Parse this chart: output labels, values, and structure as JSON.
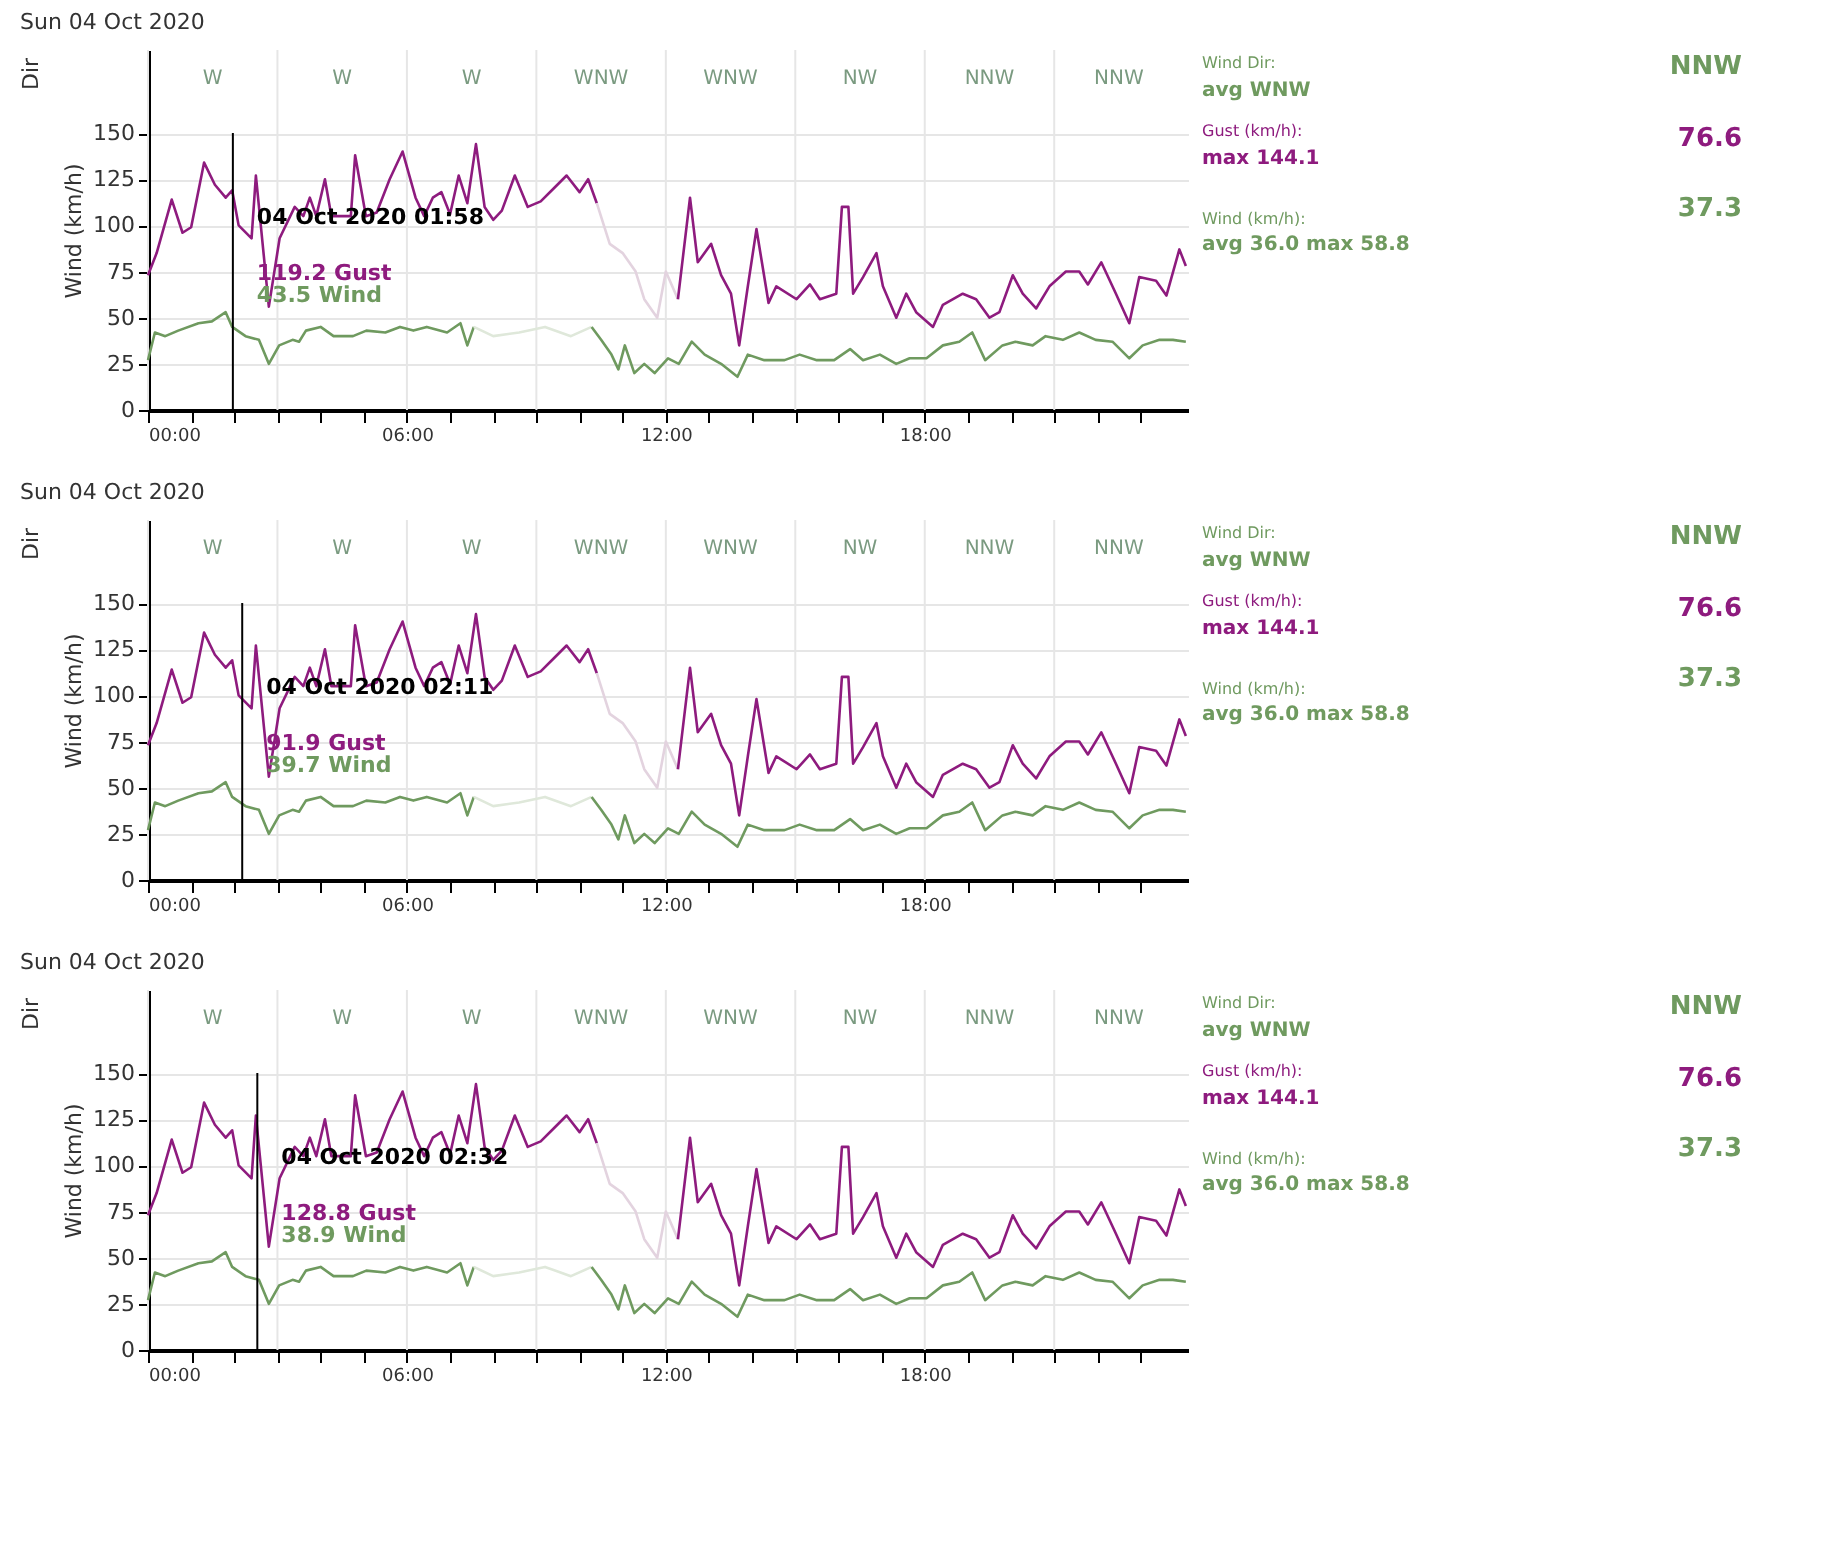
{
  "chart_data": [
    {
      "type": "line",
      "title": "Sun 04 Oct 2020",
      "ylabel": "Wind (km/h)",
      "xlim": [
        0,
        24.1
      ],
      "ylim": [
        0,
        195
      ],
      "xticks": [
        {
          "value": 0,
          "label": "00:00"
        },
        {
          "value": 1,
          "label": null
        },
        {
          "value": 2,
          "label": null
        },
        {
          "value": 3,
          "label": null
        },
        {
          "value": 4,
          "label": null
        },
        {
          "value": 5,
          "label": null
        },
        {
          "value": 6,
          "label": "06:00"
        },
        {
          "value": 7,
          "label": null
        },
        {
          "value": 8,
          "label": null
        },
        {
          "value": 9,
          "label": null
        },
        {
          "value": 10,
          "label": null
        },
        {
          "value": 11,
          "label": null
        },
        {
          "value": 12,
          "label": "12:00"
        },
        {
          "value": 13,
          "label": null
        },
        {
          "value": 14,
          "label": null
        },
        {
          "value": 15,
          "label": null
        },
        {
          "value": 16,
          "label": null
        },
        {
          "value": 17,
          "label": null
        },
        {
          "value": 18,
          "label": "18:00"
        },
        {
          "value": 19,
          "label": null
        },
        {
          "value": 20,
          "label": null
        },
        {
          "value": 21,
          "label": null
        },
        {
          "value": 22,
          "label": null
        },
        {
          "value": 23,
          "label": null
        }
      ],
      "yticks": [
        0,
        25,
        50,
        75,
        100,
        125,
        150
      ],
      "grid": true,
      "legend": false,
      "marker": "none",
      "line_style": "solid",
      "series": [
        {
          "color": "#8e1b7e",
          "x": [
            0,
            0.2,
            0.55,
            0.8,
            1.0,
            1.3,
            1.55,
            1.8,
            1.95,
            2.1,
            2.4,
            2.5,
            2.8,
            3.05,
            3.4,
            3.6,
            3.75,
            3.9,
            4.1,
            4.25,
            4.7,
            4.8,
            5.05,
            5.3,
            5.6,
            5.9,
            6.2,
            6.4,
            6.6,
            6.8,
            7.0,
            7.2,
            7.4,
            7.6,
            7.8,
            8.0,
            8.2,
            8.5,
            8.8,
            9.1,
            9.4,
            9.7,
            10.0,
            10.2,
            10.4
          ],
          "values": [
            73,
            85,
            114,
            96,
            99,
            134,
            122,
            115,
            119,
            100,
            93,
            127,
            56,
            93,
            110,
            105,
            115,
            105,
            125,
            105,
            105,
            138,
            105,
            107,
            125,
            140,
            115,
            105,
            115,
            118,
            106,
            127,
            112,
            144,
            110,
            103,
            108,
            127,
            110,
            113,
            120,
            127,
            118,
            125,
            112
          ]
        },
        {
          "color": "#e3d3df",
          "x": [
            10.4,
            10.7,
            11.0,
            11.3,
            11.5,
            11.8,
            12.0,
            12.28
          ],
          "values": [
            112,
            90,
            85,
            75,
            60,
            50,
            75,
            60
          ]
        },
        {
          "color": "#8e1b7e",
          "x": [
            12.28,
            12.56,
            12.74,
            13.05,
            13.28,
            13.51,
            13.7,
            13.9,
            14.1,
            14.38,
            14.56,
            15.03,
            15.34,
            15.57,
            15.95,
            16.08,
            16.23,
            16.34,
            16.57,
            16.88,
            17.03,
            17.34,
            17.57,
            17.8,
            18.19,
            18.42,
            18.88,
            19.19,
            19.5,
            19.73,
            20.04,
            20.27,
            20.58,
            20.89,
            21.27,
            21.58,
            21.78,
            22.09,
            22.43,
            22.74,
            22.97,
            23.36,
            23.6,
            23.9,
            24.05
          ],
          "values": [
            60,
            115,
            80,
            90,
            73,
            63,
            35,
            67,
            98,
            58,
            67,
            60,
            68,
            60,
            63,
            110,
            110,
            63,
            72,
            85,
            67,
            50,
            63,
            53,
            45,
            57,
            63,
            60,
            50,
            53,
            73,
            63,
            55,
            67,
            75,
            75,
            68,
            80,
            63,
            47,
            72,
            70,
            62,
            87,
            78
          ]
        },
        {
          "color": "#6f9a5f",
          "x": [
            0,
            0.16,
            0.4,
            0.7,
            1.17,
            1.48,
            1.8,
            1.95,
            2.26,
            2.57,
            2.8,
            3.04,
            3.35,
            3.5,
            3.66,
            4.0,
            4.3,
            4.75,
            5.06,
            5.5,
            5.84,
            6.15,
            6.46,
            6.93,
            7.24,
            7.4,
            7.55
          ],
          "values": [
            27,
            42,
            40,
            43,
            47,
            48,
            53,
            45,
            40,
            38,
            25,
            35,
            38,
            37,
            43,
            45,
            40,
            40,
            43,
            42,
            45,
            43,
            45,
            42,
            47,
            35,
            45
          ]
        },
        {
          "color": "#dfe8da",
          "x": [
            7.55,
            8.0,
            8.6,
            9.2,
            9.8,
            10.28
          ],
          "values": [
            45,
            40,
            42,
            45,
            40,
            45
          ]
        },
        {
          "color": "#6f9a5f",
          "x": [
            10.28,
            10.5,
            10.74,
            10.9,
            11.05,
            11.27,
            11.5,
            11.74,
            12.05,
            12.3,
            12.6,
            12.9,
            13.28,
            13.66,
            13.9,
            14.28,
            14.75,
            15.1,
            15.5,
            15.9,
            16.27,
            16.57,
            16.96,
            17.34,
            17.65,
            18.04,
            18.42,
            18.8,
            19.1,
            19.4,
            19.8,
            20.1,
            20.5,
            20.8,
            21.2,
            21.58,
            21.96,
            22.35,
            22.74,
            23.05,
            23.44,
            23.75,
            24.05
          ],
          "values": [
            45,
            38,
            30,
            22,
            35,
            20,
            25,
            20,
            28,
            25,
            37,
            30,
            25,
            18,
            30,
            27,
            27,
            30,
            27,
            27,
            33,
            27,
            30,
            25,
            28,
            28,
            35,
            37,
            42,
            27,
            35,
            37,
            35,
            40,
            38,
            42,
            38,
            37,
            28,
            35,
            38,
            38,
            37
          ]
        }
      ],
      "ref_lines": [
        {
          "axis": "x",
          "value": 1.9667,
          "color": "#000000"
        }
      ],
      "annotations": [
        "W",
        "W",
        "W",
        "WNW",
        "WNW",
        "NW",
        "NNW",
        "NNW",
        "Dir",
        "04 Oct 2020 01:58",
        "119.2 Gust",
        "43.5 Wind",
        "Wind Dir:",
        "avg WNW",
        "Gust (km/h):",
        "max 144.1",
        "Wind (km/h):",
        "avg 36.0   max 58.8",
        "NNW",
        "76.6",
        "37.3"
      ]
    },
    {
      "type": "line",
      "title": "Sun 04 Oct 2020",
      "ylabel": "Wind (km/h)",
      "xlim": [
        0,
        24.1
      ],
      "ylim": [
        0,
        195
      ],
      "xticks": [
        {
          "value": 0,
          "label": "00:00"
        },
        {
          "value": 1,
          "label": null
        },
        {
          "value": 2,
          "label": null
        },
        {
          "value": 3,
          "label": null
        },
        {
          "value": 4,
          "label": null
        },
        {
          "value": 5,
          "label": null
        },
        {
          "value": 6,
          "label": "06:00"
        },
        {
          "value": 7,
          "label": null
        },
        {
          "value": 8,
          "label": null
        },
        {
          "value": 9,
          "label": null
        },
        {
          "value": 10,
          "label": null
        },
        {
          "value": 11,
          "label": null
        },
        {
          "value": 12,
          "label": "12:00"
        },
        {
          "value": 13,
          "label": null
        },
        {
          "value": 14,
          "label": null
        },
        {
          "value": 15,
          "label": null
        },
        {
          "value": 16,
          "label": null
        },
        {
          "value": 17,
          "label": null
        },
        {
          "value": 18,
          "label": "18:00"
        },
        {
          "value": 19,
          "label": null
        },
        {
          "value": 20,
          "label": null
        },
        {
          "value": 21,
          "label": null
        },
        {
          "value": 22,
          "label": null
        },
        {
          "value": 23,
          "label": null
        }
      ],
      "yticks": [
        0,
        25,
        50,
        75,
        100,
        125,
        150
      ],
      "grid": true,
      "legend": false,
      "marker": "none",
      "line_style": "solid",
      "series": [
        {
          "color": "#8e1b7e",
          "x": [
            0,
            0.2,
            0.55,
            0.8,
            1.0,
            1.3,
            1.55,
            1.8,
            1.95,
            2.1,
            2.4,
            2.5,
            2.8,
            3.05,
            3.4,
            3.6,
            3.75,
            3.9,
            4.1,
            4.25,
            4.7,
            4.8,
            5.05,
            5.3,
            5.6,
            5.9,
            6.2,
            6.4,
            6.6,
            6.8,
            7.0,
            7.2,
            7.4,
            7.6,
            7.8,
            8.0,
            8.2,
            8.5,
            8.8,
            9.1,
            9.4,
            9.7,
            10.0,
            10.2,
            10.4
          ],
          "values": [
            73,
            85,
            114,
            96,
            99,
            134,
            122,
            115,
            119,
            100,
            93,
            127,
            56,
            93,
            110,
            105,
            115,
            105,
            125,
            105,
            105,
            138,
            105,
            107,
            125,
            140,
            115,
            105,
            115,
            118,
            106,
            127,
            112,
            144,
            110,
            103,
            108,
            127,
            110,
            113,
            120,
            127,
            118,
            125,
            112
          ]
        },
        {
          "color": "#e3d3df",
          "x": [
            10.4,
            10.7,
            11.0,
            11.3,
            11.5,
            11.8,
            12.0,
            12.28
          ],
          "values": [
            112,
            90,
            85,
            75,
            60,
            50,
            75,
            60
          ]
        },
        {
          "color": "#8e1b7e",
          "x": [
            12.28,
            12.56,
            12.74,
            13.05,
            13.28,
            13.51,
            13.7,
            13.9,
            14.1,
            14.38,
            14.56,
            15.03,
            15.34,
            15.57,
            15.95,
            16.08,
            16.23,
            16.34,
            16.57,
            16.88,
            17.03,
            17.34,
            17.57,
            17.8,
            18.19,
            18.42,
            18.88,
            19.19,
            19.5,
            19.73,
            20.04,
            20.27,
            20.58,
            20.89,
            21.27,
            21.58,
            21.78,
            22.09,
            22.43,
            22.74,
            22.97,
            23.36,
            23.6,
            23.9,
            24.05
          ],
          "values": [
            60,
            115,
            80,
            90,
            73,
            63,
            35,
            67,
            98,
            58,
            67,
            60,
            68,
            60,
            63,
            110,
            110,
            63,
            72,
            85,
            67,
            50,
            63,
            53,
            45,
            57,
            63,
            60,
            50,
            53,
            73,
            63,
            55,
            67,
            75,
            75,
            68,
            80,
            63,
            47,
            72,
            70,
            62,
            87,
            78
          ]
        },
        {
          "color": "#6f9a5f",
          "x": [
            0,
            0.16,
            0.4,
            0.7,
            1.17,
            1.48,
            1.8,
            1.95,
            2.26,
            2.57,
            2.8,
            3.04,
            3.35,
            3.5,
            3.66,
            4.0,
            4.3,
            4.75,
            5.06,
            5.5,
            5.84,
            6.15,
            6.46,
            6.93,
            7.24,
            7.4,
            7.55
          ],
          "values": [
            27,
            42,
            40,
            43,
            47,
            48,
            53,
            45,
            40,
            38,
            25,
            35,
            38,
            37,
            43,
            45,
            40,
            40,
            43,
            42,
            45,
            43,
            45,
            42,
            47,
            35,
            45
          ]
        },
        {
          "color": "#dfe8da",
          "x": [
            7.55,
            8.0,
            8.6,
            9.2,
            9.8,
            10.28
          ],
          "values": [
            45,
            40,
            42,
            45,
            40,
            45
          ]
        },
        {
          "color": "#6f9a5f",
          "x": [
            10.28,
            10.5,
            10.74,
            10.9,
            11.05,
            11.27,
            11.5,
            11.74,
            12.05,
            12.3,
            12.6,
            12.9,
            13.28,
            13.66,
            13.9,
            14.28,
            14.75,
            15.1,
            15.5,
            15.9,
            16.27,
            16.57,
            16.96,
            17.34,
            17.65,
            18.04,
            18.42,
            18.8,
            19.1,
            19.4,
            19.8,
            20.1,
            20.5,
            20.8,
            21.2,
            21.58,
            21.96,
            22.35,
            22.74,
            23.05,
            23.44,
            23.75,
            24.05
          ],
          "values": [
            45,
            38,
            30,
            22,
            35,
            20,
            25,
            20,
            28,
            25,
            37,
            30,
            25,
            18,
            30,
            27,
            27,
            30,
            27,
            27,
            33,
            27,
            30,
            25,
            28,
            28,
            35,
            37,
            42,
            27,
            35,
            37,
            35,
            40,
            38,
            42,
            38,
            37,
            28,
            35,
            38,
            38,
            37
          ]
        }
      ],
      "ref_lines": [
        {
          "axis": "x",
          "value": 2.1833,
          "color": "#000000"
        }
      ],
      "annotations": [
        "W",
        "W",
        "W",
        "WNW",
        "WNW",
        "NW",
        "NNW",
        "NNW",
        "Dir",
        "04 Oct 2020 02:11",
        "91.9 Gust",
        "39.7 Wind",
        "Wind Dir:",
        "avg WNW",
        "Gust (km/h):",
        "max 144.1",
        "Wind (km/h):",
        "avg 36.0   max 58.8",
        "NNW",
        "76.6",
        "37.3"
      ]
    },
    {
      "type": "line",
      "title": "Sun 04 Oct 2020",
      "ylabel": "Wind (km/h)",
      "xlim": [
        0,
        24.1
      ],
      "ylim": [
        0,
        195
      ],
      "xticks": [
        {
          "value": 0,
          "label": "00:00"
        },
        {
          "value": 1,
          "label": null
        },
        {
          "value": 2,
          "label": null
        },
        {
          "value": 3,
          "label": null
        },
        {
          "value": 4,
          "label": null
        },
        {
          "value": 5,
          "label": null
        },
        {
          "value": 6,
          "label": "06:00"
        },
        {
          "value": 7,
          "label": null
        },
        {
          "value": 8,
          "label": null
        },
        {
          "value": 9,
          "label": null
        },
        {
          "value": 10,
          "label": null
        },
        {
          "value": 11,
          "label": null
        },
        {
          "value": 12,
          "label": "12:00"
        },
        {
          "value": 13,
          "label": null
        },
        {
          "value": 14,
          "label": null
        },
        {
          "value": 15,
          "label": null
        },
        {
          "value": 16,
          "label": null
        },
        {
          "value": 17,
          "label": null
        },
        {
          "value": 18,
          "label": "18:00"
        },
        {
          "value": 19,
          "label": null
        },
        {
          "value": 20,
          "label": null
        },
        {
          "value": 21,
          "label": null
        },
        {
          "value": 22,
          "label": null
        },
        {
          "value": 23,
          "label": null
        }
      ],
      "yticks": [
        0,
        25,
        50,
        75,
        100,
        125,
        150
      ],
      "grid": true,
      "legend": false,
      "marker": "none",
      "line_style": "solid",
      "series": [
        {
          "color": "#8e1b7e",
          "x": [
            0,
            0.2,
            0.55,
            0.8,
            1.0,
            1.3,
            1.55,
            1.8,
            1.95,
            2.1,
            2.4,
            2.5,
            2.8,
            3.05,
            3.4,
            3.6,
            3.75,
            3.9,
            4.1,
            4.25,
            4.7,
            4.8,
            5.05,
            5.3,
            5.6,
            5.9,
            6.2,
            6.4,
            6.6,
            6.8,
            7.0,
            7.2,
            7.4,
            7.6,
            7.8,
            8.0,
            8.2,
            8.5,
            8.8,
            9.1,
            9.4,
            9.7,
            10.0,
            10.2,
            10.4
          ],
          "values": [
            73,
            85,
            114,
            96,
            99,
            134,
            122,
            115,
            119,
            100,
            93,
            127,
            56,
            93,
            110,
            105,
            115,
            105,
            125,
            105,
            105,
            138,
            105,
            107,
            125,
            140,
            115,
            105,
            115,
            118,
            106,
            127,
            112,
            144,
            110,
            103,
            108,
            127,
            110,
            113,
            120,
            127,
            118,
            125,
            112
          ]
        },
        {
          "color": "#e3d3df",
          "x": [
            10.4,
            10.7,
            11.0,
            11.3,
            11.5,
            11.8,
            12.0,
            12.28
          ],
          "values": [
            112,
            90,
            85,
            75,
            60,
            50,
            75,
            60
          ]
        },
        {
          "color": "#8e1b7e",
          "x": [
            12.28,
            12.56,
            12.74,
            13.05,
            13.28,
            13.51,
            13.7,
            13.9,
            14.1,
            14.38,
            14.56,
            15.03,
            15.34,
            15.57,
            15.95,
            16.08,
            16.23,
            16.34,
            16.57,
            16.88,
            17.03,
            17.34,
            17.57,
            17.8,
            18.19,
            18.42,
            18.88,
            19.19,
            19.5,
            19.73,
            20.04,
            20.27,
            20.58,
            20.89,
            21.27,
            21.58,
            21.78,
            22.09,
            22.43,
            22.74,
            22.97,
            23.36,
            23.6,
            23.9,
            24.05
          ],
          "values": [
            60,
            115,
            80,
            90,
            73,
            63,
            35,
            67,
            98,
            58,
            67,
            60,
            68,
            60,
            63,
            110,
            110,
            63,
            72,
            85,
            67,
            50,
            63,
            53,
            45,
            57,
            63,
            60,
            50,
            53,
            73,
            63,
            55,
            67,
            75,
            75,
            68,
            80,
            63,
            47,
            72,
            70,
            62,
            87,
            78
          ]
        },
        {
          "color": "#6f9a5f",
          "x": [
            0,
            0.16,
            0.4,
            0.7,
            1.17,
            1.48,
            1.8,
            1.95,
            2.26,
            2.57,
            2.8,
            3.04,
            3.35,
            3.5,
            3.66,
            4.0,
            4.3,
            4.75,
            5.06,
            5.5,
            5.84,
            6.15,
            6.46,
            6.93,
            7.24,
            7.4,
            7.55
          ],
          "values": [
            27,
            42,
            40,
            43,
            47,
            48,
            53,
            45,
            40,
            38,
            25,
            35,
            38,
            37,
            43,
            45,
            40,
            40,
            43,
            42,
            45,
            43,
            45,
            42,
            47,
            35,
            45
          ]
        },
        {
          "color": "#dfe8da",
          "x": [
            7.55,
            8.0,
            8.6,
            9.2,
            9.8,
            10.28
          ],
          "values": [
            45,
            40,
            42,
            45,
            40,
            45
          ]
        },
        {
          "color": "#6f9a5f",
          "x": [
            10.28,
            10.5,
            10.74,
            10.9,
            11.05,
            11.27,
            11.5,
            11.74,
            12.05,
            12.3,
            12.6,
            12.9,
            13.28,
            13.66,
            13.9,
            14.28,
            14.75,
            15.1,
            15.5,
            15.9,
            16.27,
            16.57,
            16.96,
            17.34,
            17.65,
            18.04,
            18.42,
            18.8,
            19.1,
            19.4,
            19.8,
            20.1,
            20.5,
            20.8,
            21.2,
            21.58,
            21.96,
            22.35,
            22.74,
            23.05,
            23.44,
            23.75,
            24.05
          ],
          "values": [
            45,
            38,
            30,
            22,
            35,
            20,
            25,
            20,
            28,
            25,
            37,
            30,
            25,
            18,
            30,
            27,
            27,
            30,
            27,
            27,
            33,
            27,
            30,
            25,
            28,
            28,
            35,
            37,
            42,
            27,
            35,
            37,
            35,
            40,
            38,
            42,
            38,
            37,
            28,
            35,
            38,
            38,
            37
          ]
        }
      ],
      "ref_lines": [
        {
          "axis": "x",
          "value": 2.5333,
          "color": "#000000"
        }
      ],
      "annotations": [
        "W",
        "W",
        "W",
        "WNW",
        "WNW",
        "NW",
        "NNW",
        "NNW",
        "Dir",
        "04 Oct 2020 02:32",
        "128.8 Gust",
        "38.9 Wind",
        "Wind Dir:",
        "avg WNW",
        "Gust (km/h):",
        "max 144.1",
        "Wind (km/h):",
        "avg 36.0   max 58.8",
        "NNW",
        "76.6",
        "37.3"
      ]
    }
  ]
}
